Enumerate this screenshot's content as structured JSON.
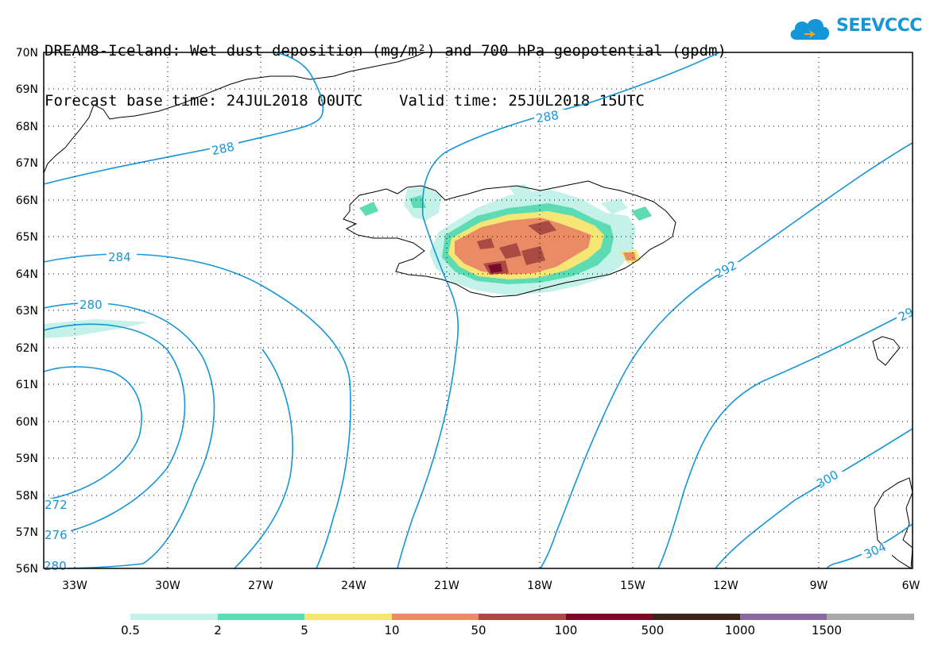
{
  "title": {
    "line1": "DREAM8-Iceland: Wet dust deposition (mg/m²) and 700 hPa geopotential (gpdm)",
    "line2": "Forecast base time: 24JUL2018 00UTC    Valid time: 25JUL2018 15UTC"
  },
  "logo": {
    "text": "SEEVCCC",
    "color": "#1496d8",
    "icon": "cloud-icon"
  },
  "map": {
    "lat_labels": [
      "70N",
      "69N",
      "68N",
      "67N",
      "66N",
      "65N",
      "64N",
      "63N",
      "62N",
      "61N",
      "60N",
      "59N",
      "58N",
      "57N",
      "56N"
    ],
    "lon_labels": [
      "33W",
      "30W",
      "27W",
      "24W",
      "21W",
      "18W",
      "15W",
      "12W",
      "9W",
      "6W"
    ],
    "lat_range": [
      56,
      70
    ],
    "lon_range": [
      -34.2,
      -6
    ],
    "grid": "dotted",
    "contour_color": "#1496d8",
    "contour_labels": [
      "288",
      "288",
      "284",
      "280",
      "272",
      "276",
      "280",
      "292",
      "29",
      "300",
      "304"
    ]
  },
  "legend": {
    "labels": [
      "0.5",
      "2",
      "5",
      "10",
      "50",
      "100",
      "500",
      "1000",
      "1500"
    ],
    "colors": [
      "#c4f1e8",
      "#5ddcb4",
      "#f6e675",
      "#e98b65",
      "#a94b42",
      "#7a0a28",
      "#3c2419",
      "#8a6aa0",
      "#a8a8a8"
    ]
  }
}
